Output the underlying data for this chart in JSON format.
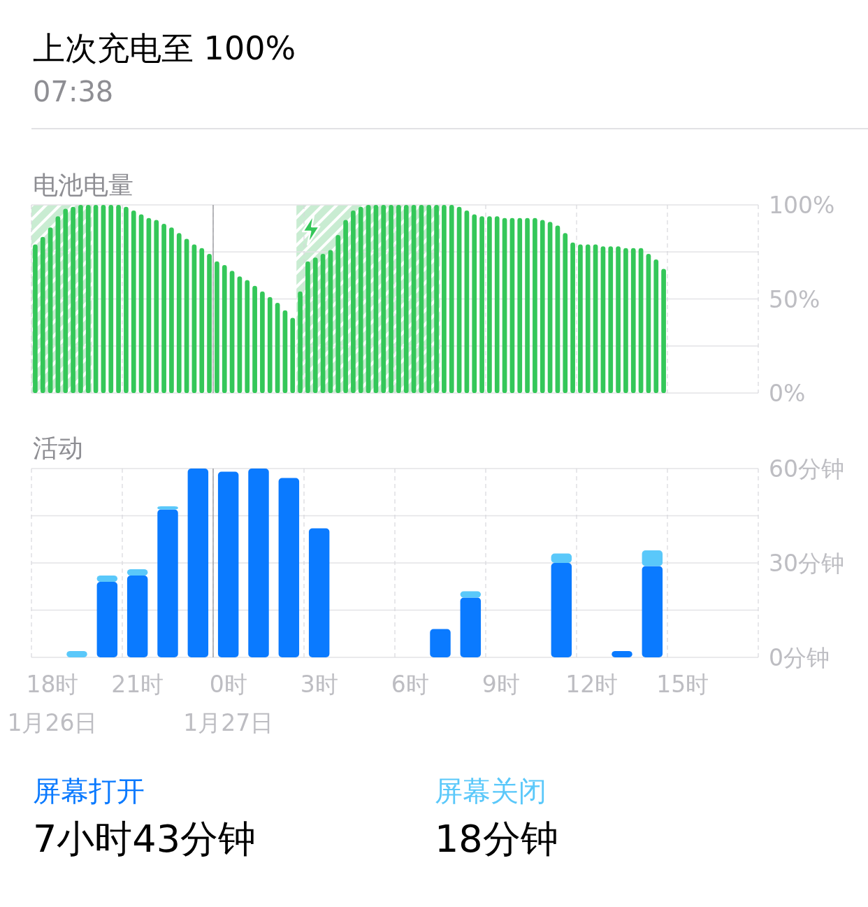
{
  "chart_data": [
    {
      "type": "bar",
      "title": "电池电量",
      "annotations": [
        "上次充电至 100%",
        "07:38"
      ],
      "categories": [
        null,
        null,
        null,
        null,
        null,
        null,
        null,
        null,
        null,
        null,
        null,
        null,
        null,
        null,
        null,
        null,
        null,
        null,
        null,
        null,
        null,
        null,
        null,
        null,
        null,
        null,
        null,
        null,
        null,
        null,
        null,
        null,
        null,
        null,
        null,
        null,
        null,
        null,
        null,
        null,
        null,
        null,
        null,
        null,
        null,
        null,
        null,
        null,
        null,
        null,
        null,
        null,
        null,
        null,
        null,
        null,
        null,
        null,
        null,
        null,
        null,
        null,
        null,
        null,
        null,
        null,
        null,
        null,
        null,
        null,
        null,
        null,
        null,
        null,
        null,
        null,
        null,
        null,
        null,
        null,
        null,
        null,
        null,
        null,
        null,
        null,
        null,
        null,
        null,
        null,
        null,
        null,
        null,
        null,
        null,
        null
      ],
      "values": [
        79,
        83,
        88,
        94,
        98,
        99,
        100,
        100,
        100,
        100,
        100,
        100,
        99,
        97,
        95,
        93,
        92,
        90,
        88,
        85,
        82,
        79,
        77,
        74,
        70,
        68,
        65,
        62,
        60,
        57,
        54,
        51,
        48,
        44,
        40,
        54,
        70,
        72,
        74,
        76,
        84,
        92,
        97,
        99,
        100,
        100,
        100,
        100,
        100,
        100,
        100,
        100,
        100,
        100,
        100,
        100,
        99,
        97,
        95,
        94,
        94,
        94,
        93,
        93,
        93,
        93,
        93,
        92,
        91,
        89,
        85,
        80,
        79,
        79,
        79,
        78,
        78,
        78,
        77,
        77,
        77,
        74,
        71,
        66,
        null,
        null,
        null,
        null,
        null,
        null,
        null,
        null,
        null,
        null,
        null,
        null
      ],
      "color": "#34c759",
      "ylim": [
        0,
        100
      ],
      "yticks": [
        {
          "value": 0,
          "label": "0%"
        },
        {
          "value": 25,
          "label": null
        },
        {
          "value": 50,
          "label": "50%"
        },
        {
          "value": 75,
          "label": null
        },
        {
          "value": 100,
          "label": "100%"
        }
      ],
      "grid": true
    },
    {
      "type": "bar",
      "title": "活动",
      "annotations": [
        "7小时43分钟",
        "18分钟"
      ],
      "stacked": true,
      "legend": "bottom",
      "categories": [
        "18时\n1月26日",
        null,
        null,
        "21时",
        null,
        null,
        "0时\n1月27日",
        null,
        null,
        "3时",
        null,
        null,
        "6时",
        null,
        null,
        "9时",
        null,
        null,
        "12时",
        null,
        null,
        "15时",
        null,
        null
      ],
      "series": [
        {
          "name": "屏幕打开",
          "color": "#0a7aff",
          "values": [
            0,
            0,
            24,
            26,
            47,
            60,
            59,
            60,
            57,
            41,
            0,
            0,
            0,
            9,
            19,
            0,
            0,
            30,
            0,
            2,
            29,
            0,
            0,
            0
          ]
        },
        {
          "name": "屏幕关闭",
          "color": "#5ac8fa",
          "values": [
            0,
            2,
            2,
            2,
            1,
            0,
            0,
            0,
            0,
            0,
            0,
            0,
            0,
            0,
            2,
            0,
            0,
            3,
            0,
            0,
            5,
            0,
            0,
            0
          ]
        }
      ],
      "ylim": [
        0,
        60
      ],
      "yticks": [
        {
          "value": 0,
          "label": "0分钟"
        },
        {
          "value": 15,
          "label": null
        },
        {
          "value": 30,
          "label": "30分钟"
        },
        {
          "value": 45,
          "label": null
        },
        {
          "value": 60,
          "label": "60分钟"
        }
      ],
      "grid": true
    }
  ]
}
